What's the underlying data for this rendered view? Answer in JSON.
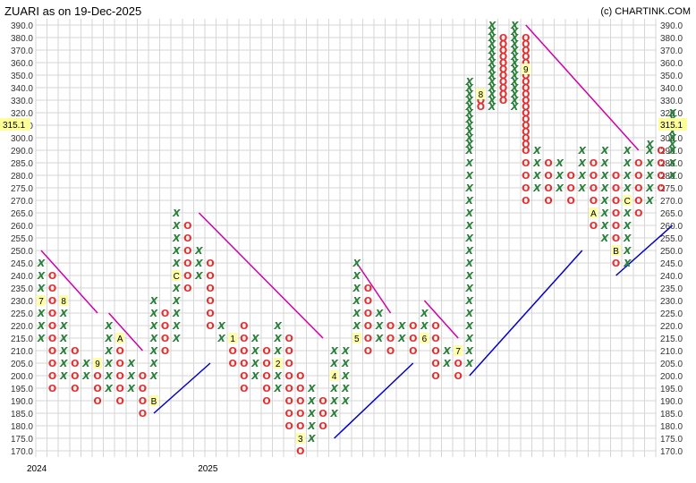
{
  "title": "ZUARI as on 19-Dec-2025",
  "credit": "(c) CHARTINK.COM",
  "last_price": "315.1",
  "chart_data": {
    "type": "point-and-figure",
    "box_size": 5,
    "ylim": [
      170,
      390
    ],
    "y_ticks": [
      "390.0",
      "380.0",
      "370.0",
      "360.0",
      "350.0",
      "340.0",
      "330.0",
      "320.0",
      "310.0",
      "300.0",
      "290.0",
      "285.0",
      "280.0",
      "275.0",
      "270.0",
      "265.0",
      "260.0",
      "255.0",
      "250.0",
      "245.0",
      "240.0",
      "235.0",
      "230.0",
      "225.0",
      "220.0",
      "215.0",
      "210.0",
      "205.0",
      "200.0",
      "195.0",
      "190.0",
      "185.0",
      "180.0",
      "175.0",
      "170.0"
    ],
    "x_labels": [
      {
        "label": "2024",
        "col": 0
      },
      {
        "label": "2025",
        "col": 17
      }
    ],
    "columns": [
      {
        "type": "X",
        "low": 215,
        "high": 245,
        "marks": [
          {
            "price": 230,
            "label": "7"
          }
        ]
      },
      {
        "type": "O",
        "low": 195,
        "high": 240
      },
      {
        "type": "X",
        "low": 200,
        "high": 230,
        "marks": [
          {
            "price": 230,
            "label": "8"
          }
        ]
      },
      {
        "type": "O",
        "low": 195,
        "high": 210
      },
      {
        "type": "X",
        "low": 200,
        "high": 205
      },
      {
        "type": "O",
        "low": 190,
        "high": 200,
        "marks": [
          {
            "price": 205,
            "label": "9"
          }
        ]
      },
      {
        "type": "X",
        "low": 195,
        "high": 220
      },
      {
        "type": "O",
        "low": 190,
        "high": 215,
        "marks": [
          {
            "price": 215,
            "label": "A"
          }
        ]
      },
      {
        "type": "X",
        "low": 195,
        "high": 205
      },
      {
        "type": "O",
        "low": 185,
        "high": 200
      },
      {
        "type": "X",
        "low": 200,
        "high": 230,
        "marks": [
          {
            "price": 190,
            "label": "B"
          }
        ]
      },
      {
        "type": "O",
        "low": 210,
        "high": 225
      },
      {
        "type": "X",
        "low": 215,
        "high": 265,
        "marks": [
          {
            "price": 240,
            "label": "C"
          }
        ]
      },
      {
        "type": "O",
        "low": 235,
        "high": 260
      },
      {
        "type": "X",
        "low": 240,
        "high": 250
      },
      {
        "type": "O",
        "low": 220,
        "high": 245
      },
      {
        "type": "X",
        "low": 215,
        "high": 220
      },
      {
        "type": "O",
        "low": 205,
        "high": 215,
        "marks": [
          {
            "price": 215,
            "label": "1"
          }
        ]
      },
      {
        "type": "O",
        "low": 195,
        "high": 220
      },
      {
        "type": "X",
        "low": 200,
        "high": 215
      },
      {
        "type": "O",
        "low": 190,
        "high": 210
      },
      {
        "type": "X",
        "low": 195,
        "high": 220,
        "marks": [
          {
            "price": 205,
            "label": "2"
          }
        ]
      },
      {
        "type": "O",
        "low": 180,
        "high": 215
      },
      {
        "type": "O",
        "low": 170,
        "high": 200,
        "marks": [
          {
            "price": 175,
            "label": "3"
          }
        ]
      },
      {
        "type": "X",
        "low": 175,
        "high": 195
      },
      {
        "type": "O",
        "low": 180,
        "high": 190
      },
      {
        "type": "X",
        "low": 185,
        "high": 210,
        "marks": [
          {
            "price": 200,
            "label": "4"
          }
        ]
      },
      {
        "type": "X",
        "low": 190,
        "high": 210
      },
      {
        "type": "X",
        "low": 215,
        "high": 245,
        "marks": [
          {
            "price": 215,
            "label": "5"
          }
        ]
      },
      {
        "type": "O",
        "low": 210,
        "high": 235
      },
      {
        "type": "X",
        "low": 215,
        "high": 225
      },
      {
        "type": "O",
        "low": 210,
        "high": 220
      },
      {
        "type": "X",
        "low": 215,
        "high": 220
      },
      {
        "type": "O",
        "low": 210,
        "high": 220
      },
      {
        "type": "X",
        "low": 215,
        "high": 225,
        "marks": [
          {
            "price": 215,
            "label": "6"
          }
        ]
      },
      {
        "type": "O",
        "low": 200,
        "high": 220
      },
      {
        "type": "X",
        "low": 205,
        "high": 210
      },
      {
        "type": "O",
        "low": 200,
        "high": 210,
        "marks": [
          {
            "price": 210,
            "label": "7"
          }
        ]
      },
      {
        "type": "X",
        "low": 205,
        "high": 345
      },
      {
        "type": "O",
        "low": 325,
        "high": 335,
        "marks": [
          {
            "price": 335,
            "label": "8"
          }
        ]
      },
      {
        "type": "X",
        "low": 325,
        "high": 390
      },
      {
        "type": "O",
        "low": 330,
        "high": 380
      },
      {
        "type": "X",
        "low": 325,
        "high": 390
      },
      {
        "type": "O",
        "low": 270,
        "high": 380,
        "marks": [
          {
            "price": 355,
            "label": "9"
          }
        ]
      },
      {
        "type": "X",
        "low": 275,
        "high": 290
      },
      {
        "type": "O",
        "low": 270,
        "high": 285
      },
      {
        "type": "X",
        "low": 275,
        "high": 285
      },
      {
        "type": "O",
        "low": 270,
        "high": 280
      },
      {
        "type": "X",
        "low": 275,
        "high": 290
      },
      {
        "type": "O",
        "low": 260,
        "high": 285,
        "marks": [
          {
            "price": 265,
            "label": "A"
          }
        ]
      },
      {
        "type": "X",
        "low": 255,
        "high": 290
      },
      {
        "type": "O",
        "low": 245,
        "high": 280,
        "marks": [
          {
            "price": 250,
            "label": "B"
          }
        ]
      },
      {
        "type": "X",
        "low": 245,
        "high": 290,
        "marks": [
          {
            "price": 270,
            "label": "C"
          }
        ]
      },
      {
        "type": "O",
        "low": 265,
        "high": 285
      },
      {
        "type": "X",
        "low": 270,
        "high": 295
      },
      {
        "type": "O",
        "low": 275,
        "high": 290
      },
      {
        "type": "X",
        "low": 280,
        "high": 320
      }
    ],
    "trendlines": [
      {
        "color": "#cc00aa",
        "from": {
          "col": 0,
          "price": 250
        },
        "to": {
          "col": 5,
          "price": 225
        }
      },
      {
        "color": "#cc00aa",
        "from": {
          "col": 6,
          "price": 225
        },
        "to": {
          "col": 9,
          "price": 210
        }
      },
      {
        "color": "#0000cc",
        "from": {
          "col": 10,
          "price": 185
        },
        "to": {
          "col": 15,
          "price": 205
        }
      },
      {
        "color": "#cc00aa",
        "from": {
          "col": 14,
          "price": 265
        },
        "to": {
          "col": 25,
          "price": 215
        }
      },
      {
        "color": "#0000cc",
        "from": {
          "col": 26,
          "price": 175
        },
        "to": {
          "col": 33,
          "price": 205
        }
      },
      {
        "color": "#cc00aa",
        "from": {
          "col": 28,
          "price": 245
        },
        "to": {
          "col": 31,
          "price": 225
        }
      },
      {
        "color": "#cc00aa",
        "from": {
          "col": 34,
          "price": 230
        },
        "to": {
          "col": 37,
          "price": 215
        }
      },
      {
        "color": "#0000cc",
        "from": {
          "col": 38,
          "price": 200
        },
        "to": {
          "col": 48,
          "price": 250
        }
      },
      {
        "color": "#cc00aa",
        "from": {
          "col": 43,
          "price": 390
        },
        "to": {
          "col": 53,
          "price": 290
        }
      },
      {
        "color": "#0000cc",
        "from": {
          "col": 51,
          "price": 240
        },
        "to": {
          "col": 56,
          "price": 260
        }
      }
    ]
  }
}
